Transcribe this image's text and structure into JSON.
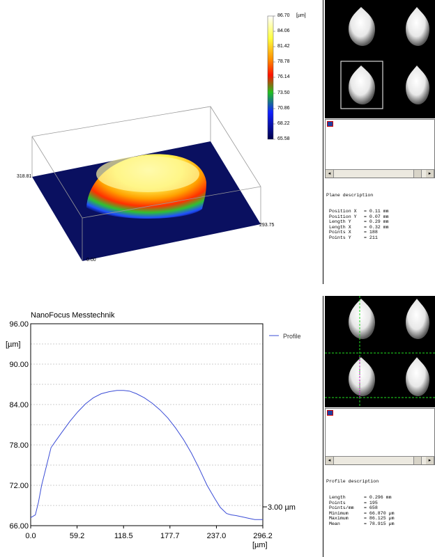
{
  "view3d": {
    "colorbar": {
      "unit": "[µm]",
      "labels": [
        "86.70",
        "84.06",
        "81.42",
        "78.78",
        "76.14",
        "73.50",
        "70.86",
        "68.22",
        "65.58"
      ]
    },
    "axis_labels": {
      "y_extent": "318.81",
      "x_extent": "293.75",
      "origin": "0.00"
    }
  },
  "plane_panel": {
    "title": "Plane description",
    "rows": [
      {
        "k": "Position X",
        "v": "= 0.11 mm"
      },
      {
        "k": "Position Y",
        "v": "= 0.07 mm"
      },
      {
        "k": "Length Y",
        "v": "= 0.29 mm"
      },
      {
        "k": "Length X",
        "v": "= 0.32 mm"
      },
      {
        "k": "Points X",
        "v": "= 188"
      },
      {
        "k": "Points Y",
        "v": "= 211"
      }
    ]
  },
  "profile_panel": {
    "title": "Profile description",
    "rows": [
      {
        "k": "Length",
        "v": "= 0.296 mm"
      },
      {
        "k": "Points",
        "v": "= 195"
      },
      {
        "k": "Points/mm",
        "v": "= 658"
      },
      {
        "k": "Minimum",
        "v": "= 66.870 µm"
      },
      {
        "k": "Maximum",
        "v": "= 86.125 µm"
      },
      {
        "k": "Mean",
        "v": "= 78.915 µm"
      }
    ]
  },
  "chart_data": {
    "type": "line",
    "title": "NanoFocus Messtechnik",
    "xlabel": "[µm]",
    "ylabel": "[µm]",
    "xlim": [
      0,
      296.2
    ],
    "ylim": [
      66,
      96
    ],
    "x_ticks": [
      "0.0",
      "59.2",
      "118.5",
      "177.7",
      "237.0",
      "296.2"
    ],
    "y_ticks": [
      "96.00",
      "90.00",
      "84.00",
      "78.00",
      "72.00",
      "66.00"
    ],
    "legend": "top-right",
    "annotation": "3.00 µm",
    "grid": true,
    "series": [
      {
        "name": "Profile",
        "color": "#3a4cd6",
        "x": [
          0,
          6,
          10,
          14,
          20,
          26,
          32,
          40,
          50,
          60,
          70,
          80,
          90,
          100,
          110,
          118.5,
          126,
          135,
          145,
          155,
          165,
          175,
          185,
          195,
          205,
          215,
          225,
          235,
          242,
          250,
          256,
          262,
          270,
          278,
          286,
          296.2
        ],
        "y": [
          67.2,
          67.6,
          69.5,
          72.0,
          74.8,
          77.6,
          78.6,
          79.9,
          81.5,
          82.9,
          84.1,
          85.0,
          85.6,
          85.9,
          86.1,
          86.1,
          86.0,
          85.6,
          85.0,
          84.2,
          83.2,
          82.0,
          80.5,
          78.8,
          76.8,
          74.5,
          72.0,
          70.0,
          68.7,
          67.8,
          67.6,
          67.5,
          67.3,
          67.1,
          66.9,
          66.9
        ]
      }
    ]
  }
}
